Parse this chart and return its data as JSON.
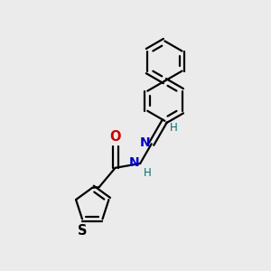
{
  "background_color": "#ebebeb",
  "bond_color": "#000000",
  "atom_colors": {
    "N": "#0000cc",
    "O": "#cc0000",
    "S": "#000000",
    "H": "#007070",
    "C": "#000000"
  },
  "figsize": [
    3.0,
    3.0
  ],
  "dpi": 100
}
